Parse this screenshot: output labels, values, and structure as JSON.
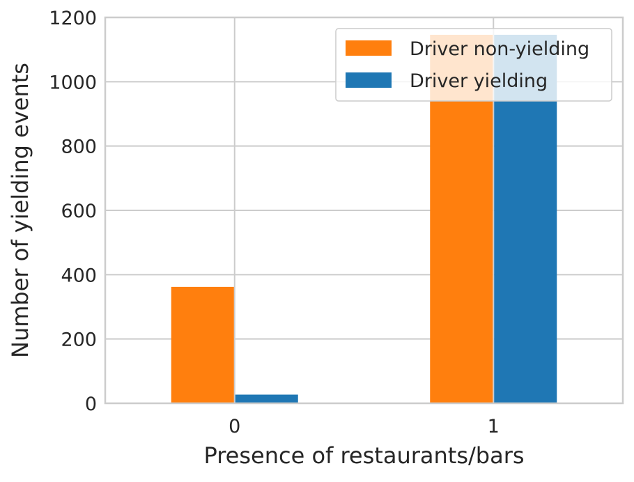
{
  "chart_data": {
    "type": "bar",
    "title": "",
    "xlabel": "Presence of restaurants/bars",
    "ylabel": "Number of yielding events",
    "categories": [
      "0",
      "1"
    ],
    "ylim": [
      0,
      1200
    ],
    "yticks": [
      0,
      200,
      400,
      600,
      800,
      1000,
      1200
    ],
    "grid": true,
    "legend_position": "top-right",
    "series": [
      {
        "name": "Driver non-yielding",
        "values": [
          362,
          1146
        ],
        "color": "#ff7f0e"
      },
      {
        "name": "Driver yielding",
        "values": [
          27,
          1146
        ],
        "color": "#1f77b4"
      }
    ]
  }
}
